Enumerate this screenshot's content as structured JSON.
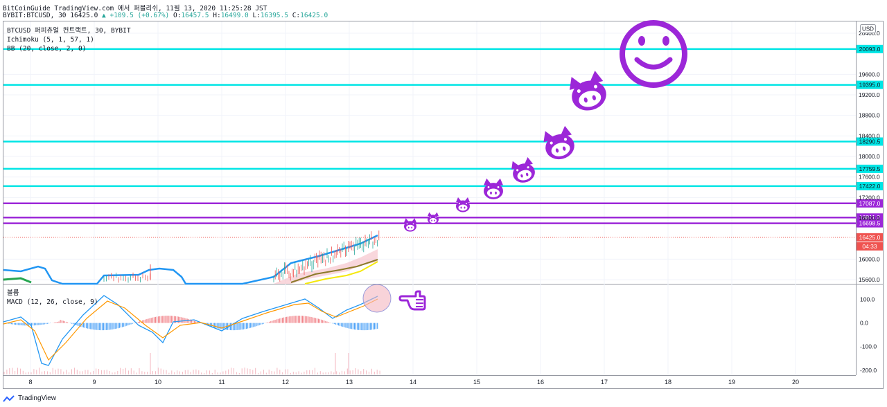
{
  "header": {
    "line1": "BitCoinGuide TradingView.com 에서 퍼블리쉬, 11월 13, 2020 11:25:28 JST",
    "symbol": "BYBIT:BTCUSD, 30",
    "last": "16425.0",
    "change": "▲ +109.5 (+0.67%)",
    "o_label": "O:",
    "o": "16457.5",
    "h_label": "H:",
    "h": "16499.0",
    "l_label": "L:",
    "l": "16395.5",
    "c_label": "C:",
    "c": "16425.0"
  },
  "legend": {
    "title": "BTCUSD 퍼피츄얼 컨트랙트, 30, BYBIT",
    "ichimoku": "Ichimoku (5, 1, 57, 1)",
    "bb": "BB (20, close, 2, 0)"
  },
  "macd_legend": {
    "volume": "볼륨",
    "macd": "MACD (12, 26, close, 9)"
  },
  "currency_badge": "USD",
  "price_axis": {
    "ticks": [
      "20400.0",
      "19600.0",
      "19200.0",
      "18800.0",
      "18400.0",
      "18000.0",
      "17600.0",
      "17200.0",
      "16800.0",
      "16000.0",
      "15600.0"
    ],
    "tick_values": [
      20400,
      19600,
      19200,
      18800,
      18400,
      18000,
      17600,
      17200,
      16800,
      16000,
      15600
    ],
    "ymin": 15520,
    "ymax": 20630
  },
  "horizontal_levels": [
    {
      "label": "20093.0",
      "value": 20093,
      "color": "#00e5e5"
    },
    {
      "label": "19395.0",
      "value": 19395,
      "color": "#00e5e5"
    },
    {
      "label": "18290.5",
      "value": 18290.5,
      "color": "#00e5e5"
    },
    {
      "label": "17759.5",
      "value": 17759.5,
      "color": "#00e5e5"
    },
    {
      "label": "17422.0",
      "value": 17422,
      "color": "#00e5e5"
    },
    {
      "label": "17087.0",
      "value": 17087,
      "color": "#9c27d8"
    },
    {
      "label": "16811.0",
      "value": 16811,
      "color": "#9c27d8"
    },
    {
      "label": "16698.5",
      "value": 16698.5,
      "color": "#9c27d8"
    }
  ],
  "current_price": {
    "label": "16425.0",
    "value": 16425,
    "countdown": "04:33",
    "color": "#ef5350"
  },
  "macd_axis": {
    "ticks": [
      "100.0",
      "0.0",
      "-100.0",
      "-200.0"
    ],
    "values": [
      100,
      0,
      -100,
      -200
    ],
    "ymin": -218,
    "ymax": 160
  },
  "time_axis": [
    "8",
    "9",
    "10",
    "11",
    "12",
    "13",
    "14",
    "15",
    "16",
    "17",
    "18",
    "19",
    "20"
  ],
  "colors": {
    "cyan": "#00e5e5",
    "purple": "#9c27d8",
    "red": "#ef5350",
    "green": "#26a69a",
    "blue": "#2196f3",
    "orange": "#ff9800",
    "yellow": "#f5e80c",
    "grid": "#f0f3fa"
  },
  "brand": "TradingView",
  "icons": [
    "pig-face-icon",
    "smiley-face-icon",
    "pointing-hand-icon"
  ]
}
